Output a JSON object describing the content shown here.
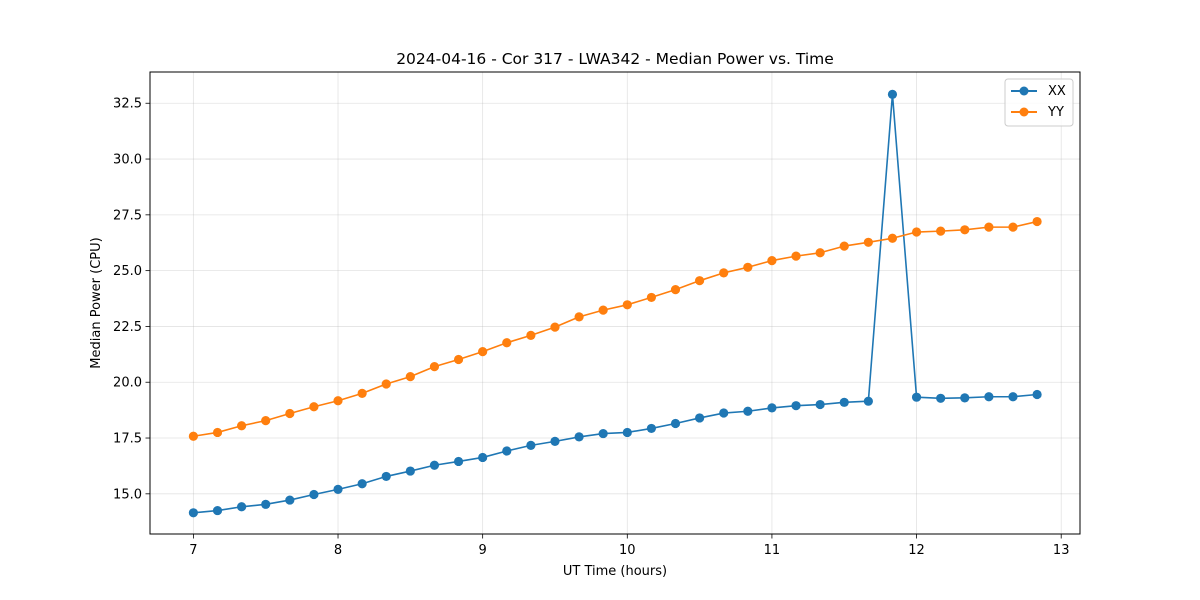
{
  "chart_data": {
    "type": "line",
    "title": "2024-04-16 - Cor 317 - LWA342 - Median Power vs. Time",
    "xlabel": "UT Time (hours)",
    "ylabel": "Median Power (CPU)",
    "xlim": [
      6.7,
      13.13
    ],
    "ylim": [
      13.2,
      33.9
    ],
    "xticks": [
      7,
      8,
      9,
      10,
      11,
      12,
      13
    ],
    "xtick_labels": [
      "7",
      "8",
      "9",
      "10",
      "11",
      "12",
      "13"
    ],
    "yticks": [
      15.0,
      17.5,
      20.0,
      22.5,
      25.0,
      27.5,
      30.0,
      32.5
    ],
    "ytick_labels": [
      "15.0",
      "17.5",
      "20.0",
      "22.5",
      "25.0",
      "27.5",
      "30.0",
      "32.5"
    ],
    "grid": true,
    "legend_position": "top-right",
    "x": [
      7.0,
      7.1667,
      7.3333,
      7.5,
      7.6667,
      7.8333,
      8.0,
      8.1667,
      8.3333,
      8.5,
      8.6667,
      8.8333,
      9.0,
      9.1667,
      9.3333,
      9.5,
      9.6667,
      9.8333,
      10.0,
      10.1667,
      10.3333,
      10.5,
      10.6667,
      10.8333,
      11.0,
      11.1667,
      11.3333,
      11.5,
      11.6667,
      11.8333,
      12.0,
      12.1667,
      12.3333,
      12.5,
      12.6667,
      12.8333
    ],
    "series": [
      {
        "name": "XX",
        "color": "#1f77b4",
        "values": [
          14.15,
          14.25,
          14.42,
          14.53,
          14.72,
          14.97,
          15.2,
          15.45,
          15.78,
          16.02,
          16.28,
          16.45,
          16.63,
          16.92,
          17.17,
          17.35,
          17.55,
          17.7,
          17.75,
          17.93,
          18.15,
          18.4,
          18.62,
          18.7,
          18.85,
          18.95,
          19.0,
          19.1,
          19.15,
          32.9,
          19.33,
          19.28,
          19.3,
          19.35,
          19.35,
          19.45
        ]
      },
      {
        "name": "YY",
        "color": "#ff7f0e",
        "values": [
          17.58,
          17.75,
          18.05,
          18.28,
          18.6,
          18.9,
          19.17,
          19.5,
          19.92,
          20.25,
          20.7,
          21.02,
          21.37,
          21.77,
          22.1,
          22.47,
          22.93,
          23.23,
          23.47,
          23.8,
          24.15,
          24.55,
          24.9,
          25.15,
          25.45,
          25.65,
          25.8,
          26.1,
          26.27,
          26.45,
          26.73,
          26.77,
          26.83,
          26.95,
          26.95,
          27.2
        ]
      }
    ]
  }
}
